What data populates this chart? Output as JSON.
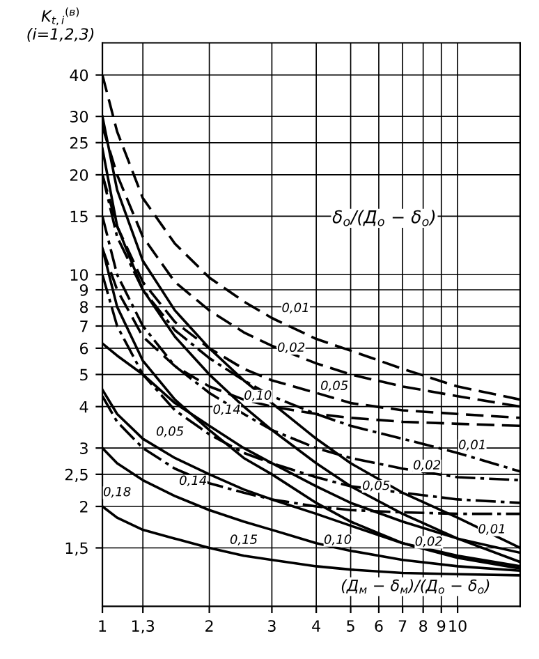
{
  "chart_data": {
    "type": "line",
    "ylabel": "K$_{t,i}$$^{(в)}$\n(i=1,2,3)",
    "xlabel": "(Д$_{м}$ − δ$_{м}$)/(Д$_{o}$ − δ$_{o}$)",
    "log": "xy",
    "grid": true,
    "legend": false,
    "xlim": [
      1,
      15
    ],
    "xticks": [
      1,
      {
        "value": 1.3,
        "label": "1,3"
      },
      2,
      3,
      4,
      5,
      6,
      7,
      8,
      9,
      10
    ],
    "ylim": [
      1,
      50
    ],
    "yticks": [
      {
        "value": 1.5,
        "label": "1,5"
      },
      2,
      {
        "value": 2.5,
        "label": "2,5"
      },
      3,
      4,
      5,
      6,
      7,
      8,
      9,
      10,
      15,
      20,
      25,
      30,
      40
    ],
    "x": [
      1,
      1.1,
      1.3,
      1.6,
      2,
      2.5,
      3,
      4,
      5,
      7,
      10,
      15
    ],
    "series": [
      {
        "color": "#000000",
        "line_style": "dashed",
        "values": [
          40,
          27,
          17,
          12.4,
          9.8,
          8.3,
          7.4,
          6.4,
          5.9,
          5.2,
          4.6,
          4.2
        ]
      },
      {
        "color": "#000000",
        "line_style": "dashed",
        "values": [
          28,
          20,
          13,
          9.5,
          7.8,
          6.7,
          6.1,
          5.4,
          5.0,
          4.6,
          4.3,
          4.0
        ]
      },
      {
        "color": "#000000",
        "line_style": "dashed",
        "values": [
          20,
          14,
          9.5,
          7.2,
          6.0,
          5.2,
          4.8,
          4.4,
          4.1,
          3.9,
          3.8,
          3.7
        ]
      },
      {
        "color": "#000000",
        "line_style": "dashed",
        "values": [
          12,
          9,
          6.5,
          5.3,
          4.6,
          4.2,
          4.0,
          3.8,
          3.7,
          3.6,
          3.55,
          3.5
        ]
      },
      {
        "color": "#000000",
        "line_style": "dashdot",
        "values": [
          20,
          13,
          9,
          6.8,
          5.6,
          4.8,
          4.3,
          3.8,
          3.5,
          3.2,
          2.9,
          2.55
        ]
      },
      {
        "color": "#000000",
        "line_style": "dashdot",
        "values": [
          15,
          10,
          7,
          5.3,
          4.4,
          3.8,
          3.4,
          3.0,
          2.8,
          2.6,
          2.45,
          2.4
        ]
      },
      {
        "color": "#000000",
        "line_style": "dashdot",
        "values": [
          10,
          7,
          5,
          3.9,
          3.3,
          2.9,
          2.7,
          2.45,
          2.3,
          2.2,
          2.1,
          2.05
        ]
      },
      {
        "color": "#000000",
        "line_style": "dashdot",
        "values": [
          4.3,
          3.6,
          3.0,
          2.6,
          2.35,
          2.2,
          2.1,
          2.0,
          1.95,
          1.92,
          1.9,
          1.9
        ]
      },
      {
        "color": "#000000",
        "line_style": "solid",
        "values": [
          30,
          18,
          11,
          7.8,
          6.0,
          4.8,
          4.1,
          3.2,
          2.7,
          2.2,
          1.85,
          1.5
        ]
      },
      {
        "color": "#000000",
        "line_style": "solid",
        "values": [
          24,
          14,
          9,
          6.5,
          5.0,
          4.0,
          3.4,
          2.7,
          2.3,
          1.9,
          1.6,
          1.36
        ]
      },
      {
        "color": "#000000",
        "line_style": "solid",
        "values": [
          12,
          8,
          5.5,
          4.2,
          3.4,
          2.8,
          2.5,
          2.05,
          1.8,
          1.55,
          1.4,
          1.3
        ]
      },
      {
        "color": "#000000",
        "line_style": "solid",
        "values": [
          6.2,
          5.7,
          5.0,
          4.1,
          3.5,
          3.0,
          2.7,
          2.3,
          2.05,
          1.8,
          1.6,
          1.45
        ]
      },
      {
        "color": "#000000",
        "line_style": "solid",
        "values": [
          4.5,
          3.8,
          3.2,
          2.8,
          2.5,
          2.25,
          2.1,
          1.9,
          1.75,
          1.55,
          1.42,
          1.32
        ]
      },
      {
        "color": "#000000",
        "line_style": "solid",
        "values": [
          3.0,
          2.7,
          2.4,
          2.15,
          1.95,
          1.8,
          1.7,
          1.55,
          1.47,
          1.38,
          1.32,
          1.28
        ]
      },
      {
        "color": "#000000",
        "line_style": "solid",
        "values": [
          2.0,
          1.85,
          1.7,
          1.6,
          1.5,
          1.42,
          1.38,
          1.32,
          1.29,
          1.26,
          1.25,
          1.24
        ]
      }
    ],
    "annotations": [
      "δ$_{o}$/(Д$_{o}$ − δ$_{o}$)",
      {
        "text": "0,01",
        "x": 3.5,
        "y": 7.9
      },
      {
        "text": "0,02",
        "x": 3.4,
        "y": 6
      },
      {
        "text": "0,05",
        "x": 4.5,
        "y": 4.6
      },
      {
        "text": "0,10",
        "x": 2.74,
        "y": 4.3
      },
      {
        "text": "0,14",
        "x": 2.24,
        "y": 3.9
      },
      {
        "text": "0,01",
        "x": 11,
        "y": 3.05
      },
      {
        "text": "0,02",
        "x": 8.2,
        "y": 2.65
      },
      {
        "text": "0,05",
        "x": 5.9,
        "y": 2.3
      },
      {
        "text": "0,05",
        "x": 1.55,
        "y": 3.35
      },
      {
        "text": "0,14",
        "x": 1.8,
        "y": 2.38
      },
      {
        "text": "0,18",
        "x": 1.1,
        "y": 2.2
      },
      {
        "text": "0,15",
        "x": 2.5,
        "y": 1.58
      },
      {
        "text": "0,10",
        "x": 4.6,
        "y": 1.58
      },
      {
        "text": "0,02",
        "x": 8.3,
        "y": 1.56
      },
      {
        "text": "0,01",
        "x": 12.5,
        "y": 1.7
      }
    ]
  }
}
